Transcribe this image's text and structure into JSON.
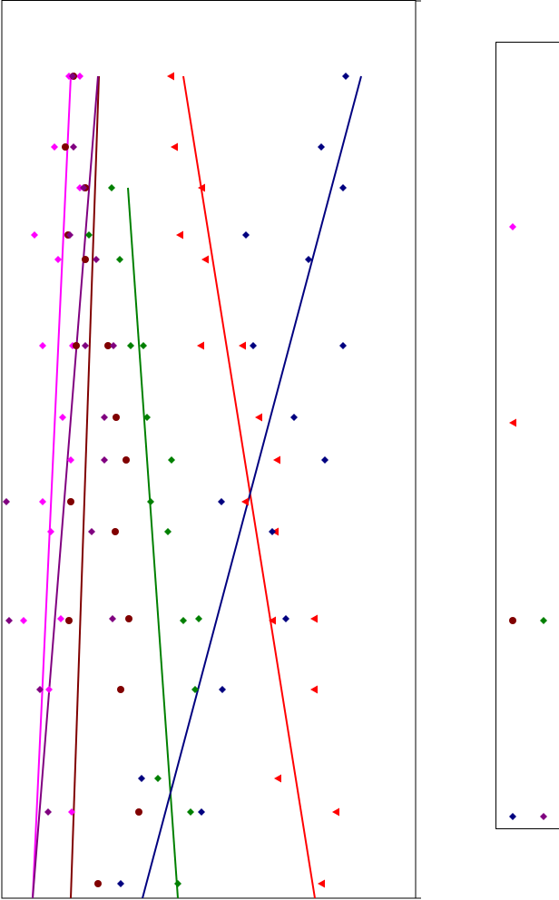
{
  "chart_data": {
    "type": "scatter",
    "xlim": [
      0,
      456
    ],
    "ylim": [
      990,
      0
    ],
    "series": [
      {
        "color": "#ff00ff",
        "marker": "diamond",
        "x": [
          74,
          86,
          58,
          86,
          36,
          62,
          45,
          78,
          67,
          76,
          45,
          54,
          24,
          65,
          52,
          77
        ],
        "values": [
          84,
          84,
          162,
          207,
          259,
          286,
          381,
          381,
          460,
          507,
          553,
          586,
          684,
          682,
          760,
          895
        ],
        "trend": {
          "x": [
            76,
            34
          ],
          "y": [
            84,
            990
          ]
        }
      },
      {
        "color": "#ff0000",
        "marker": "triangle",
        "x": [
          186,
          190,
          220,
          196,
          224,
          219,
          265,
          283,
          303,
          268,
          301,
          298,
          344,
          344,
          304,
          368,
          352
        ],
        "values": [
          84,
          162,
          207,
          259,
          286,
          381,
          381,
          460,
          507,
          553,
          586,
          684,
          682,
          760,
          858,
          895,
          974
        ],
        "trend": {
          "x": [
            200,
            345
          ],
          "y": [
            84,
            990
          ]
        }
      },
      {
        "color": "#800000",
        "marker": "circle",
        "x": [
          79,
          70,
          92,
          73,
          92,
          82,
          117,
          126,
          137,
          76,
          125,
          74,
          140,
          131,
          151,
          106
        ],
        "values": [
          84,
          162,
          207,
          259,
          286,
          381,
          381,
          460,
          507,
          553,
          586,
          684,
          682,
          760,
          895,
          974
        ],
        "trend": {
          "x": [
            107,
            76
          ],
          "y": [
            84,
            990
          ]
        }
      },
      {
        "color": "#008000",
        "marker": "diamond",
        "x": [
          121,
          96,
          130,
          142,
          156,
          160,
          187,
          164,
          183,
          200,
          217,
          213,
          172,
          208,
          194
        ],
        "values": [
          207,
          259,
          286,
          381,
          381,
          460,
          507,
          553,
          586,
          684,
          682,
          760,
          858,
          895,
          974
        ],
        "trend": {
          "x": [
            139,
            194
          ],
          "y": [
            207,
            990
          ]
        }
      },
      {
        "color": "#000080",
        "marker": "diamond",
        "x": [
          379,
          352,
          376,
          269,
          338,
          277,
          376,
          322,
          356,
          242,
          298,
          313,
          243,
          154,
          220,
          131
        ],
        "values": [
          84,
          162,
          207,
          259,
          286,
          381,
          381,
          460,
          507,
          553,
          586,
          682,
          760,
          858,
          895,
          974
        ],
        "trend": {
          "x": [
            396,
            155
          ],
          "y": [
            84,
            990
          ]
        }
      },
      {
        "color": "#800080",
        "marker": "diamond",
        "x": [
          78,
          79,
          90,
          75,
          104,
          92,
          123,
          113,
          113,
          5,
          99,
          8,
          122,
          42,
          51
        ],
        "values": [
          84,
          162,
          207,
          259,
          286,
          381,
          381,
          460,
          507,
          553,
          586,
          684,
          682,
          760,
          895
        ],
        "trend": {
          "x": [
            106,
            34
          ],
          "y": [
            84,
            990
          ]
        }
      }
    ]
  }
}
